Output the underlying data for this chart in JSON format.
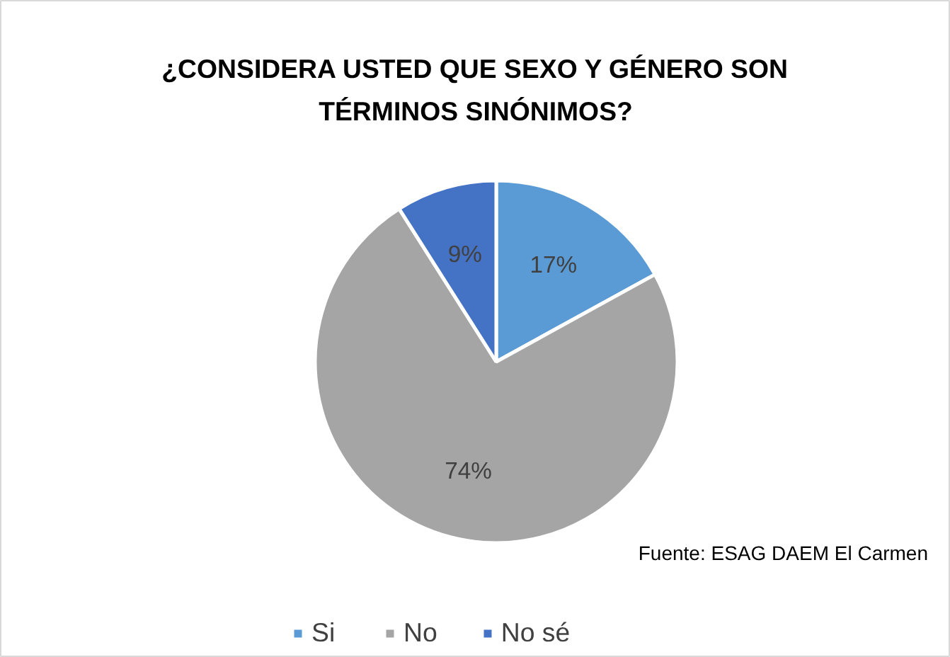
{
  "chart_data": {
    "type": "pie",
    "title": "¿CONSIDERA USTED QUE SEXO Y GÉNERO SON TÉRMINOS SINÓNIMOS?",
    "categories": [
      "Si",
      "No",
      "No sé"
    ],
    "values": [
      17,
      74,
      9
    ],
    "colors": [
      "#5b9bd5",
      "#a5a5a5",
      "#4472c4"
    ],
    "value_labels": [
      "17%",
      "74%",
      "9%"
    ],
    "legend": "bottom",
    "annotations": [
      "Fuente: ESAG DAEM El Carmen"
    ]
  }
}
